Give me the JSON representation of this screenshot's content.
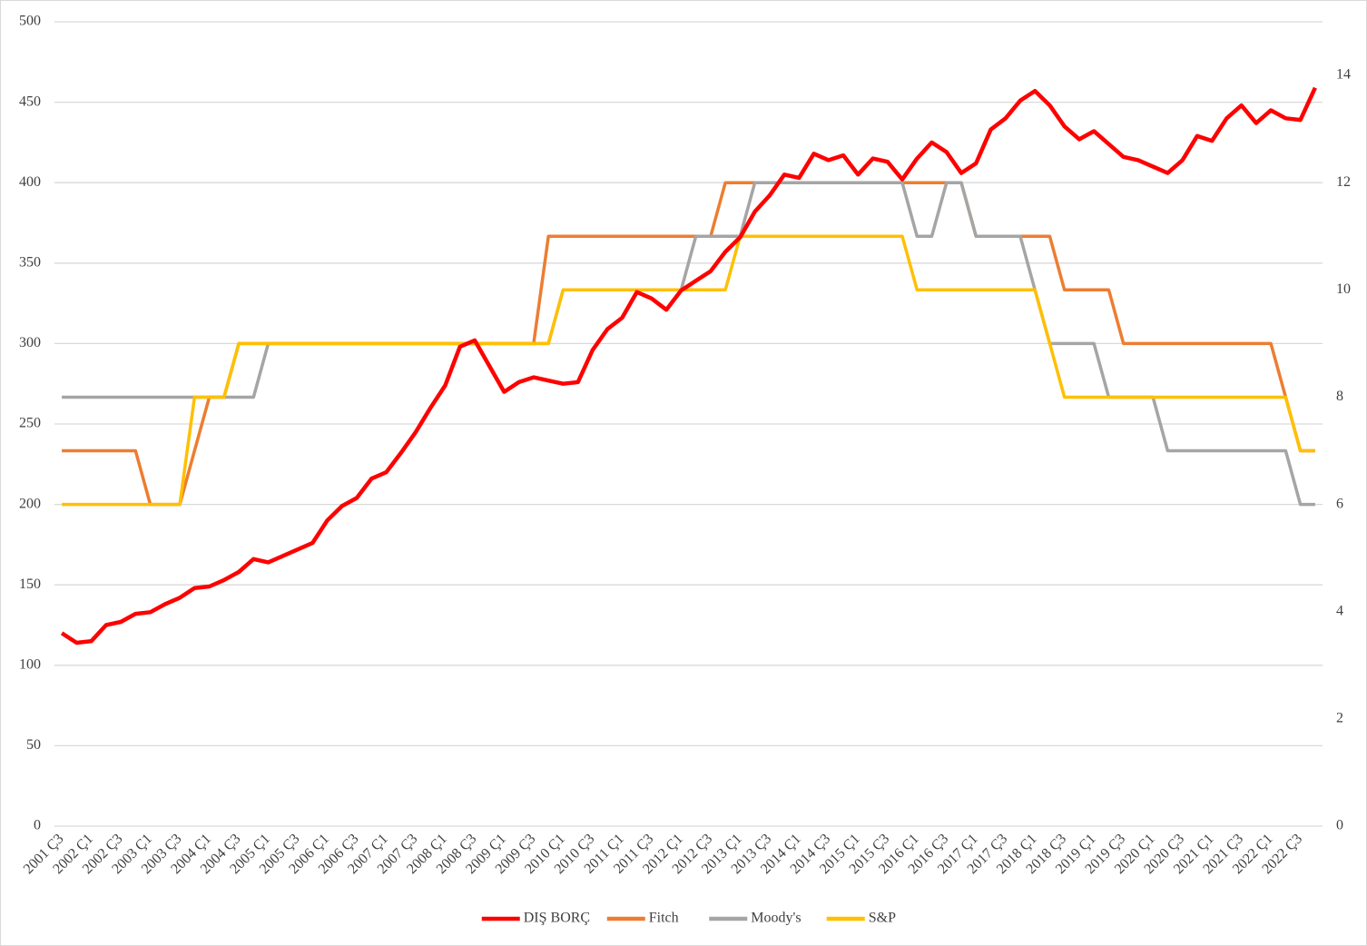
{
  "chart_data": {
    "type": "line",
    "categories": [
      "2001 Ç3",
      null,
      "2002 Ç1",
      null,
      "2002 Ç3",
      null,
      "2003 Ç1",
      null,
      "2003 Ç3",
      null,
      "2004 Ç1",
      null,
      "2004 Ç3",
      null,
      "2005 Ç1",
      null,
      "2005 Ç3",
      null,
      "2006 Ç1",
      null,
      "2006 Ç3",
      null,
      "2007 Ç1",
      null,
      "2007 Ç3",
      null,
      "2008 Ç1",
      null,
      "2008 Ç3",
      null,
      "2009 Ç1",
      null,
      "2009 Ç3",
      null,
      "2010 Ç1",
      null,
      "2010 Ç3",
      null,
      "2011 Ç1",
      null,
      "2011 Ç3",
      null,
      "2012 Ç1",
      null,
      "2012 Ç3",
      null,
      "2013 Ç1",
      null,
      "2013 Ç3",
      null,
      "2014 Ç1",
      null,
      "2014 Ç3",
      null,
      "2015 Ç1",
      null,
      "2015 Ç3",
      null,
      "2016 Ç1",
      null,
      "2016 Ç3",
      null,
      "2017 Ç1",
      null,
      "2017 Ç3",
      null,
      "2018 Ç1",
      null,
      "2018 Ç3",
      null,
      "2019 Ç1",
      null,
      "2019 Ç3",
      null,
      "2020 Ç1",
      null,
      "2020 Ç3",
      null,
      "2021 Ç1",
      null,
      "2021 Ç3",
      null,
      "2022 Ç1",
      null,
      "2022 Ç3",
      null
    ],
    "series": [
      {
        "name": "DIŞ BORÇ",
        "color": "#ff0000",
        "axis": "y",
        "values": [
          120,
          114,
          115,
          125,
          127,
          132,
          133,
          138,
          142,
          148,
          149,
          153,
          158,
          166,
          164,
          168,
          172,
          176,
          190,
          199,
          204,
          216,
          220,
          232,
          245,
          260,
          274,
          298,
          302,
          286,
          270,
          276,
          279,
          277,
          275,
          276,
          296,
          309,
          316,
          332,
          328,
          321,
          333,
          339,
          345,
          357,
          366,
          382,
          392,
          405,
          403,
          418,
          414,
          417,
          405,
          415,
          413,
          402,
          415,
          425,
          419,
          406,
          412,
          433,
          440,
          451,
          457,
          448,
          435,
          427,
          432,
          424,
          416,
          414,
          410,
          406,
          414,
          429,
          426,
          440,
          448,
          437,
          445,
          440,
          439,
          459
        ]
      },
      {
        "name": "Fitch",
        "color": "#ed7d31",
        "axis": "y2",
        "values": [
          7,
          7,
          7,
          7,
          7,
          7,
          6,
          6,
          6,
          7,
          8,
          8,
          9,
          9,
          9,
          9,
          9,
          9,
          9,
          9,
          9,
          9,
          9,
          9,
          9,
          9,
          9,
          9,
          9,
          9,
          9,
          9,
          9,
          11,
          11,
          11,
          11,
          11,
          11,
          11,
          11,
          11,
          11,
          11,
          11,
          12,
          12,
          12,
          12,
          12,
          12,
          12,
          12,
          12,
          12,
          12,
          12,
          12,
          12,
          12,
          12,
          12,
          11,
          11,
          11,
          11,
          11,
          11,
          10,
          10,
          10,
          10,
          9,
          9,
          9,
          9,
          9,
          9,
          9,
          9,
          9,
          9,
          9,
          8,
          7,
          7
        ]
      },
      {
        "name": "Moody's",
        "color": "#a5a5a5",
        "axis": "y2",
        "values": [
          8,
          8,
          8,
          8,
          8,
          8,
          8,
          8,
          8,
          8,
          8,
          8,
          8,
          8,
          9,
          9,
          9,
          9,
          9,
          9,
          9,
          9,
          9,
          9,
          9,
          9,
          9,
          9,
          9,
          9,
          9,
          9,
          9,
          9,
          10,
          10,
          10,
          10,
          10,
          10,
          10,
          10,
          10,
          11,
          11,
          11,
          11,
          12,
          12,
          12,
          12,
          12,
          12,
          12,
          12,
          12,
          12,
          12,
          11,
          11,
          12,
          12,
          11,
          11,
          11,
          11,
          10,
          9,
          9,
          9,
          9,
          8,
          8,
          8,
          8,
          7,
          7,
          7,
          7,
          7,
          7,
          7,
          7,
          7,
          6,
          6
        ]
      },
      {
        "name": "S&P",
        "color": "#ffc000",
        "axis": "y2",
        "values": [
          6,
          6,
          6,
          6,
          6,
          6,
          6,
          6,
          6,
          8,
          8,
          8,
          9,
          9,
          9,
          9,
          9,
          9,
          9,
          9,
          9,
          9,
          9,
          9,
          9,
          9,
          9,
          9,
          9,
          9,
          9,
          9,
          9,
          9,
          10,
          10,
          10,
          10,
          10,
          10,
          10,
          10,
          10,
          10,
          10,
          10,
          11,
          11,
          11,
          11,
          11,
          11,
          11,
          11,
          11,
          11,
          11,
          11,
          10,
          10,
          10,
          10,
          10,
          10,
          10,
          10,
          10,
          9,
          8,
          8,
          8,
          8,
          8,
          8,
          8,
          8,
          8,
          8,
          8,
          8,
          8,
          8,
          8,
          8,
          7,
          7
        ]
      }
    ],
    "ylim": [
      0,
      500
    ],
    "yticks": [
      0,
      50,
      100,
      150,
      200,
      250,
      300,
      350,
      400,
      450,
      500
    ],
    "y2lim": [
      0,
      15
    ],
    "y2ticks": [
      0,
      2,
      4,
      6,
      8,
      10,
      12,
      14
    ],
    "grid": true,
    "legend": "bottom"
  }
}
